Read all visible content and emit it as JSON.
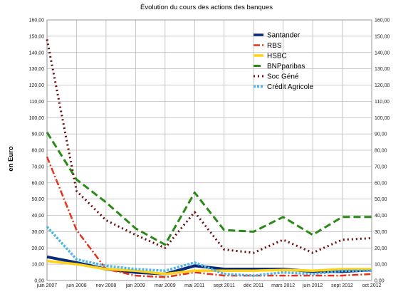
{
  "chart_data": {
    "type": "line",
    "title": "Évolution du cours des actions des banques",
    "ylabel": "en Euro",
    "xlabel": "",
    "ylim": [
      0,
      160
    ],
    "ytick_step": 10,
    "ytick_labels": [
      "0,00",
      "10,00",
      "20,00",
      "30,00",
      "40,00",
      "50,00",
      "60,00",
      "70,00",
      "80,00",
      "90,00",
      "100,00",
      "110,00",
      "120,00",
      "130,00",
      "140,00",
      "150,00",
      "160,00"
    ],
    "categories": [
      "juin 2007",
      "juin 2008",
      "nov 2008",
      "jan 2009",
      "mar 2009",
      "mai 2011",
      "sept 2011",
      "déc 2011",
      "mars 2012",
      "juin 2012",
      "sept 2012",
      "oct 2012"
    ],
    "grid": true,
    "legend_position": "top-right",
    "series": [
      {
        "name": "Santander",
        "color": "#0a2a7a",
        "dash": "",
        "width": 4,
        "values": [
          14.5,
          11,
          7,
          5,
          4,
          9,
          7,
          7,
          7,
          5.5,
          5.5,
          6.5
        ]
      },
      {
        "name": "RBS",
        "color": "#e4321c",
        "dash": "9 3 2 3",
        "width": 2.5,
        "values": [
          76,
          31,
          7,
          3,
          2,
          5,
          3,
          3,
          3,
          3,
          3,
          4
        ]
      },
      {
        "name": "HSBC",
        "color": "#ffd21a",
        "dash": "",
        "width": 3.5,
        "values": [
          12,
          10,
          7,
          6,
          4,
          6,
          6,
          6,
          6.5,
          6,
          7,
          7
        ]
      },
      {
        "name": "BNPparibas",
        "color": "#2a8a17",
        "dash": "10 5",
        "width": 3,
        "values": [
          91,
          62,
          48,
          32,
          22,
          54,
          31,
          30,
          39,
          28,
          39,
          39
        ]
      },
      {
        "name": "Soc Géné",
        "color": "#6b0a0a",
        "dash": "2 4",
        "width": 3,
        "values": [
          148,
          55,
          37,
          28,
          20,
          42,
          19,
          17,
          25,
          17,
          25,
          26
        ]
      },
      {
        "name": "Crédit Agricole",
        "color": "#4fb6e8",
        "dash": "3 2",
        "width": 3.5,
        "values": [
          33,
          13,
          9,
          7,
          6,
          11,
          4,
          3,
          5,
          4,
          6,
          6
        ]
      }
    ]
  }
}
